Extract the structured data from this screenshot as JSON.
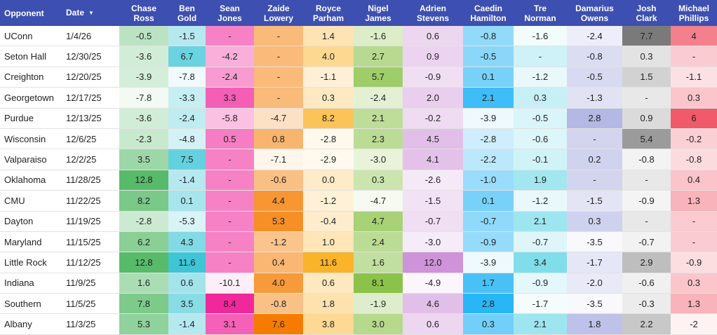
{
  "table": {
    "columns": [
      "Opponent",
      "Date",
      "Chase Ross",
      "Ben Gold",
      "Sean Jones",
      "Zaide Lowery",
      "Royce Parham",
      "Nigel James",
      "Adrien Stevens",
      "Caedin Hamilton",
      "Tre Norman",
      "Damarius Owens",
      "Josh Clark",
      "Michael Phillips"
    ],
    "rows": [
      [
        "UConn",
        "1/4/26",
        "-0.5",
        "-1.5",
        "-",
        "-",
        "1.4",
        "-1.6",
        "0.6",
        "-0.8",
        "-1.6",
        "-2.4",
        "7.7",
        "4"
      ],
      [
        "Seton Hall",
        "12/30/25",
        "-3.6",
        "6.7",
        "-4.2",
        "-",
        "4.0",
        "2.7",
        "0.9",
        "-0.5",
        "-",
        "-0.8",
        "0.3",
        "-"
      ],
      [
        "Creighton",
        "12/20/25",
        "-3.9",
        "-7.8",
        "-2.4",
        "-",
        "-1.1",
        "5.7",
        "-0.9",
        "0.1",
        "-1.2",
        "-0.5",
        "1.5",
        "-1.1"
      ],
      [
        "Georgetown",
        "12/17/25",
        "-7.8",
        "-3.3",
        "3.3",
        "-",
        "0.3",
        "-2.4",
        "2.0",
        "2.1",
        "0.3",
        "-1.3",
        "-",
        "0.3"
      ],
      [
        "Purdue",
        "12/13/25",
        "-3.6",
        "-2.4",
        "-5.8",
        "-4.7",
        "8.2",
        "2.1",
        "-0.2",
        "-3.9",
        "-0.5",
        "2.8",
        "0.9",
        "6"
      ],
      [
        "Wisconsin",
        "12/6/25",
        "-2.3",
        "-4.8",
        "0.5",
        "0.8",
        "-2.8",
        "2.3",
        "4.5",
        "-2.8",
        "-0.6",
        "-",
        "5.4",
        "-0.2"
      ],
      [
        "Valparaiso",
        "12/2/25",
        "3.5",
        "7.5",
        "-",
        "-7.1",
        "-2.9",
        "-3.0",
        "4.1",
        "-2.2",
        "-0.1",
        "0.2",
        "-0.8",
        "-0.8"
      ],
      [
        "Oklahoma",
        "11/28/25",
        "12.8",
        "-1.4",
        "-",
        "-0.6",
        "0.0",
        "0.3",
        "-2.6",
        "-1.0",
        "1.9",
        "-",
        "-",
        "0.4"
      ],
      [
        "CMU",
        "11/22/25",
        "8.2",
        "0.1",
        "-",
        "4.4",
        "-1.2",
        "-4.7",
        "-1.5",
        "0.1",
        "-1.2",
        "-1.5",
        "-0.9",
        "1.3"
      ],
      [
        "Dayton",
        "11/19/25",
        "-2.8",
        "-5.3",
        "-",
        "5.3",
        "-0.4",
        "4.7",
        "-0.7",
        "-0.7",
        "2.1",
        "0.3",
        "-",
        "-"
      ],
      [
        "Maryland",
        "11/15/25",
        "6.2",
        "4.3",
        "-",
        "-1.2",
        "1.0",
        "2.4",
        "-3.0",
        "-0.9",
        "-0.7",
        "-3.5",
        "-0.7",
        "-"
      ],
      [
        "Little Rock",
        "11/12/25",
        "12.8",
        "11.6",
        "-",
        "0.4",
        "11.6",
        "1.6",
        "12.0",
        "-3.9",
        "3.4",
        "-1.7",
        "2.9",
        "-0.9"
      ],
      [
        "Indiana",
        "11/9/25",
        "1.6",
        "0.6",
        "-10.1",
        "4.0",
        "0.6",
        "8.1",
        "-4.9",
        "1.7",
        "-0.9",
        "-2.0",
        "-0.6",
        "0.3"
      ],
      [
        "Southern",
        "11/5/25",
        "7.8",
        "3.5",
        "8.4",
        "-0.8",
        "1.8",
        "-1.9",
        "4.6",
        "2.8",
        "-1.7",
        "-3.5",
        "-0.3",
        "1.3"
      ],
      [
        "Albany",
        "11/3/25",
        "5.3",
        "-1.4",
        "3.1",
        "7.6",
        "3.8",
        "3.0",
        "0.6",
        "0.3",
        "2.1",
        "1.8",
        "2.2",
        "-2"
      ]
    ]
  }
}
